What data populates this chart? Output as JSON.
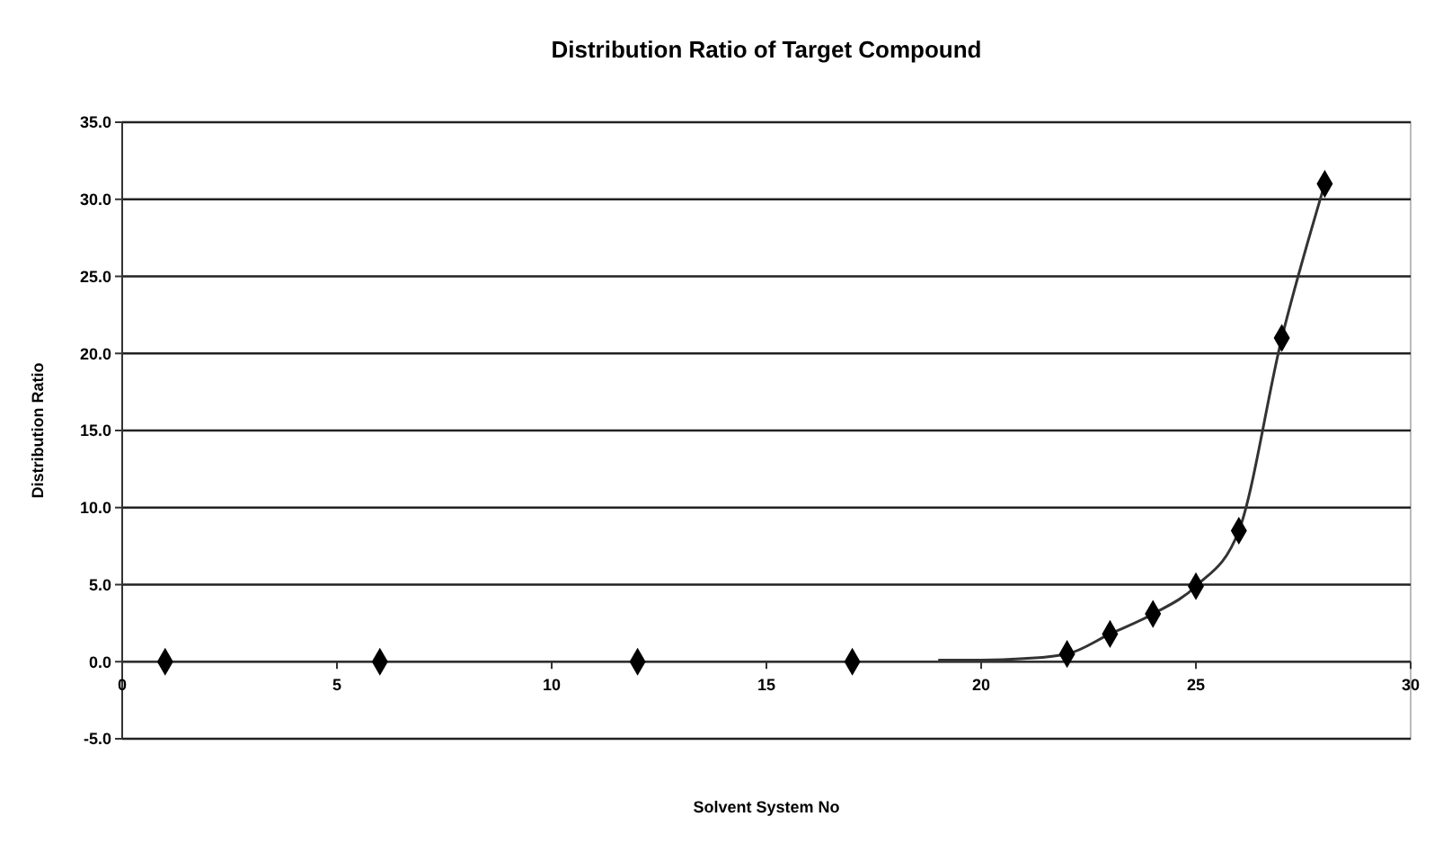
{
  "chart_data": {
    "type": "scatter",
    "title": "Distribution Ratio of Target Compound",
    "xlabel": "Solvent System No",
    "ylabel": "Distribution Ratio",
    "xlim": [
      0,
      30
    ],
    "xticks": [
      0,
      5,
      10,
      15,
      20,
      25,
      30
    ],
    "ylim": [
      -5,
      35
    ],
    "yticks": [
      {
        "value": -5,
        "label": "-5.0"
      },
      {
        "value": 0,
        "label": "0.0"
      },
      {
        "value": 5,
        "label": "5.0"
      },
      {
        "value": 10,
        "label": "10.0"
      },
      {
        "value": 15,
        "label": "15.0"
      },
      {
        "value": 20,
        "label": "20.0"
      },
      {
        "value": 25,
        "label": "25.0"
      },
      {
        "value": 30,
        "label": "30.0"
      },
      {
        "value": 35,
        "label": "35.0"
      }
    ],
    "grid": "y",
    "series": [
      {
        "type": "line",
        "color": "#333333",
        "marker": "none",
        "line_style": "solid",
        "x": [
          19,
          20,
          21,
          22,
          23,
          24,
          25,
          26,
          27,
          28
        ],
        "values": [
          0.1,
          0.1,
          0.2,
          0.5,
          1.8,
          3.1,
          4.9,
          8.5,
          21,
          31
        ]
      },
      {
        "color": "#000000",
        "marker": "diamond",
        "x": [
          1,
          6,
          12,
          17,
          22,
          23,
          24,
          25,
          26,
          27,
          28
        ],
        "values": [
          0,
          0,
          0,
          0,
          0.5,
          1.8,
          3.1,
          4.9,
          8.5,
          21,
          31
        ]
      }
    ]
  }
}
